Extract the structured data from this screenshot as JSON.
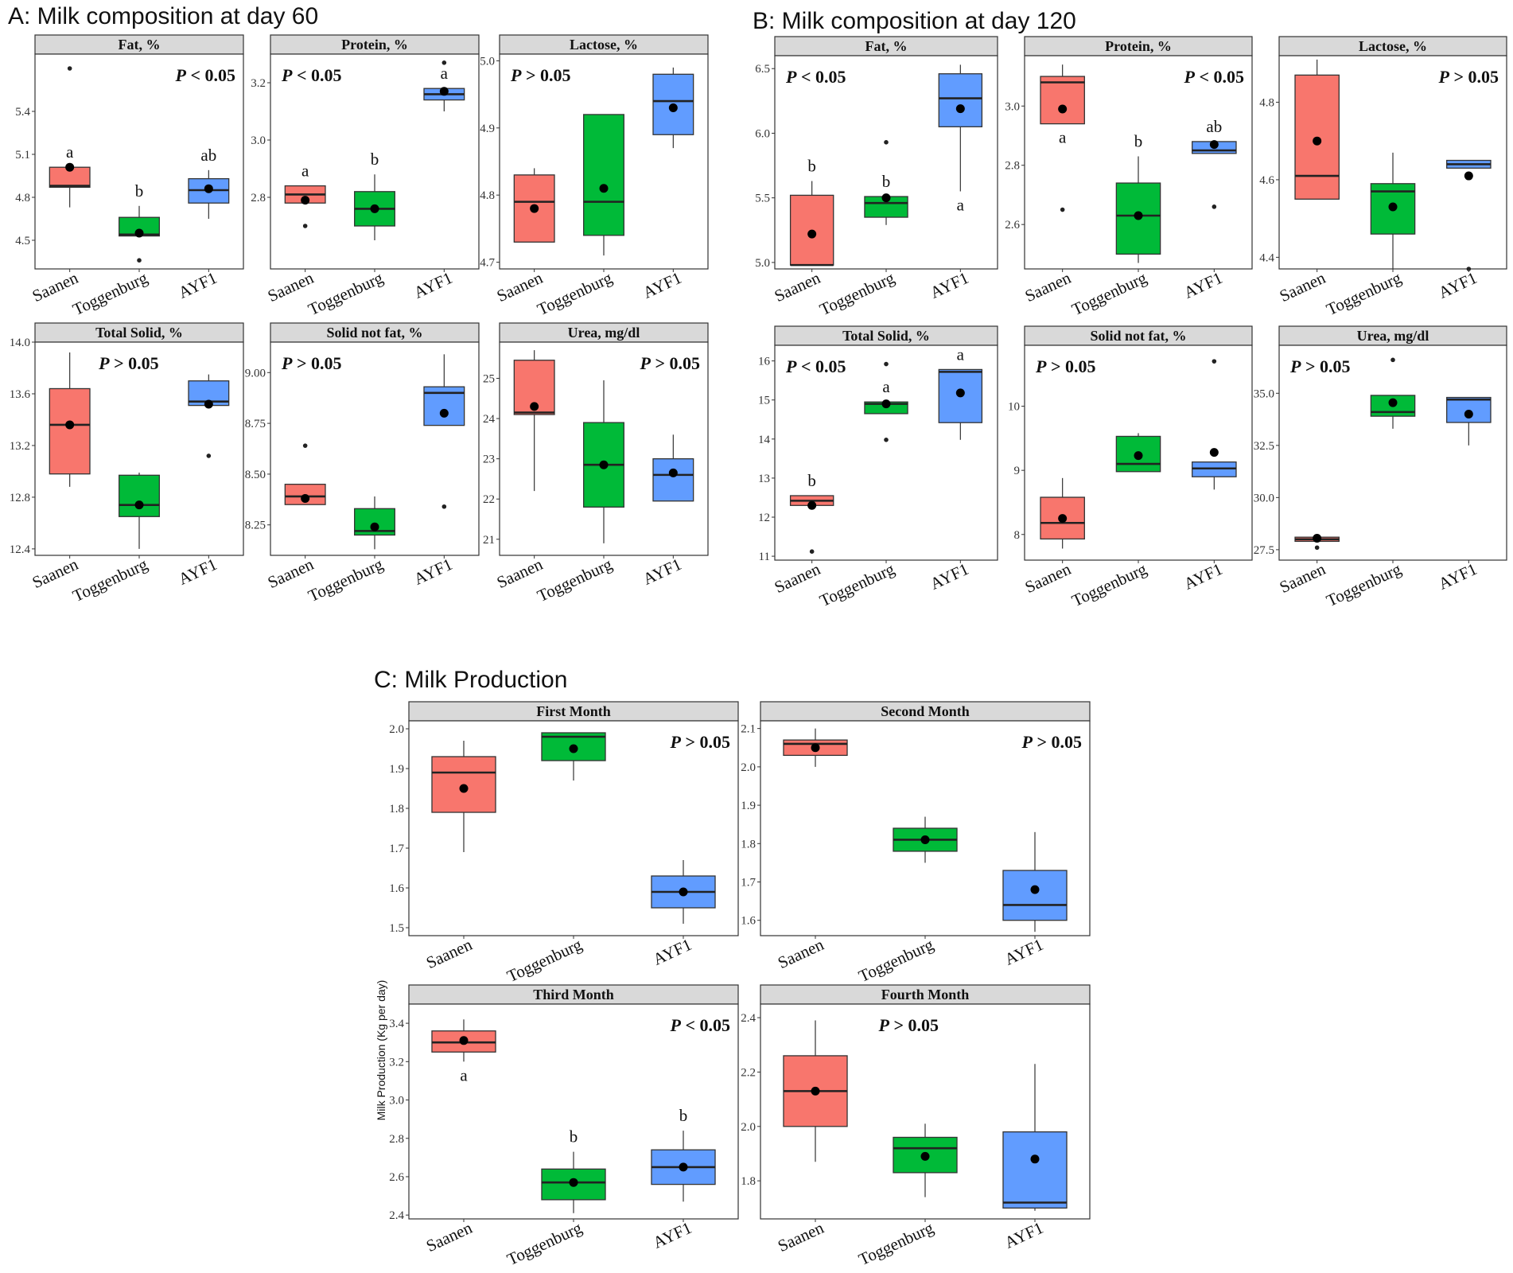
{
  "section_titles": {
    "A": "A: Milk composition at day 60",
    "B": "B: Milk composition at day 120",
    "C": "C: Milk Production"
  },
  "shared_ylabel": "Milk Production (Kg per day)",
  "categories": [
    "Saanen",
    "Toggenburg",
    "AYF1"
  ],
  "colors": {
    "Saanen": "#f8766d",
    "Toggenburg": "#00ba38",
    "AYF1": "#619cff"
  },
  "chart_data": [
    {
      "id": "A_fat",
      "section": "A",
      "type": "box",
      "title": "Fat, %",
      "ylim": [
        4.3,
        5.8
      ],
      "yticks": [
        4.5,
        4.8,
        5.1,
        5.4
      ],
      "tick_decimals": 1,
      "pvalue": "P < 0.05",
      "p_place": "top-right",
      "boxes": [
        {
          "category": "Saanen",
          "q1": 4.87,
          "median": 4.88,
          "q3": 5.01,
          "lower": 4.73,
          "upper": 5.01,
          "mean": 5.01,
          "outliers": [
            5.7
          ],
          "letter": "a"
        },
        {
          "category": "Toggenburg",
          "q1": 4.53,
          "median": 4.54,
          "q3": 4.66,
          "lower": 4.53,
          "upper": 4.74,
          "mean": 4.55,
          "outliers": [
            4.36
          ],
          "letter": "b"
        },
        {
          "category": "AYF1",
          "q1": 4.76,
          "median": 4.85,
          "q3": 4.93,
          "lower": 4.65,
          "upper": 4.99,
          "mean": 4.86,
          "outliers": [],
          "letter": "ab"
        }
      ]
    },
    {
      "id": "A_protein",
      "section": "A",
      "type": "box",
      "title": "Protein, %",
      "ylim": [
        2.55,
        3.3
      ],
      "yticks": [
        2.8,
        3.0,
        3.2
      ],
      "tick_decimals": 1,
      "pvalue": "P < 0.05",
      "p_place": "top-left",
      "boxes": [
        {
          "category": "Saanen",
          "q1": 2.78,
          "median": 2.81,
          "q3": 2.84,
          "lower": 2.78,
          "upper": 2.84,
          "mean": 2.79,
          "outliers": [
            2.7
          ],
          "letter": "a"
        },
        {
          "category": "Toggenburg",
          "q1": 2.7,
          "median": 2.76,
          "q3": 2.82,
          "lower": 2.65,
          "upper": 2.88,
          "mean": 2.76,
          "outliers": [],
          "letter": "b"
        },
        {
          "category": "AYF1",
          "q1": 3.14,
          "median": 3.16,
          "q3": 3.18,
          "lower": 3.1,
          "upper": 3.18,
          "mean": 3.17,
          "outliers": [
            3.27
          ],
          "letter": "a"
        }
      ]
    },
    {
      "id": "A_lactose",
      "section": "A",
      "type": "box",
      "title": "Lactose, %",
      "ylim": [
        4.69,
        5.01
      ],
      "yticks": [
        4.7,
        4.8,
        4.9,
        5.0
      ],
      "tick_decimals": 1,
      "pvalue": "P > 0.05",
      "p_place": "top-left",
      "boxes": [
        {
          "category": "Saanen",
          "q1": 4.73,
          "median": 4.79,
          "q3": 4.83,
          "lower": 4.73,
          "upper": 4.84,
          "mean": 4.78,
          "outliers": [],
          "letter": ""
        },
        {
          "category": "Toggenburg",
          "q1": 4.74,
          "median": 4.79,
          "q3": 4.92,
          "lower": 4.71,
          "upper": 4.92,
          "mean": 4.81,
          "outliers": [],
          "letter": ""
        },
        {
          "category": "AYF1",
          "q1": 4.89,
          "median": 4.94,
          "q3": 4.98,
          "lower": 4.87,
          "upper": 4.99,
          "mean": 4.93,
          "outliers": [],
          "letter": ""
        }
      ]
    },
    {
      "id": "A_total_solid",
      "section": "A",
      "type": "box",
      "title": "Total Solid, %",
      "ylim": [
        12.35,
        14.0
      ],
      "yticks": [
        12.4,
        12.8,
        13.2,
        13.6,
        14.0
      ],
      "tick_decimals": 1,
      "pvalue": "P > 0.05",
      "p_place": "top-center",
      "boxes": [
        {
          "category": "Saanen",
          "q1": 12.98,
          "median": 13.36,
          "q3": 13.64,
          "lower": 12.88,
          "upper": 13.92,
          "mean": 13.36,
          "outliers": [],
          "letter": ""
        },
        {
          "category": "Toggenburg",
          "q1": 12.65,
          "median": 12.74,
          "q3": 12.97,
          "lower": 12.4,
          "upper": 12.99,
          "mean": 12.74,
          "outliers": [],
          "letter": ""
        },
        {
          "category": "AYF1",
          "q1": 13.51,
          "median": 13.54,
          "q3": 13.7,
          "lower": 13.51,
          "upper": 13.75,
          "mean": 13.52,
          "outliers": [
            13.12
          ],
          "letter": ""
        }
      ]
    },
    {
      "id": "A_snf",
      "section": "A",
      "type": "box",
      "title": "Solid not fat, %",
      "ylim": [
        8.1,
        9.15
      ],
      "yticks": [
        8.25,
        8.5,
        8.75,
        9.0
      ],
      "tick_decimals": 2,
      "pvalue": "P > 0.05",
      "p_place": "top-left",
      "boxes": [
        {
          "category": "Saanen",
          "q1": 8.35,
          "median": 8.39,
          "q3": 8.45,
          "lower": 8.35,
          "upper": 8.45,
          "mean": 8.38,
          "outliers": [
            8.64
          ],
          "letter": ""
        },
        {
          "category": "Toggenburg",
          "q1": 8.2,
          "median": 8.22,
          "q3": 8.33,
          "lower": 8.13,
          "upper": 8.39,
          "mean": 8.24,
          "outliers": [],
          "letter": ""
        },
        {
          "category": "AYF1",
          "q1": 8.74,
          "median": 8.9,
          "q3": 8.93,
          "lower": 8.74,
          "upper": 9.09,
          "mean": 8.8,
          "outliers": [
            8.34
          ],
          "letter": ""
        }
      ]
    },
    {
      "id": "A_urea",
      "section": "A",
      "type": "box",
      "title": "Urea, mg/dl",
      "ylim": [
        20.6,
        25.9
      ],
      "yticks": [
        21,
        22,
        23,
        24,
        25
      ],
      "tick_decimals": 0,
      "pvalue": "P > 0.05",
      "p_place": "top-right",
      "boxes": [
        {
          "category": "Saanen",
          "q1": 24.1,
          "median": 24.15,
          "q3": 25.45,
          "lower": 22.2,
          "upper": 25.7,
          "mean": 24.3,
          "outliers": [],
          "letter": ""
        },
        {
          "category": "Toggenburg",
          "q1": 21.8,
          "median": 22.85,
          "q3": 23.9,
          "lower": 20.9,
          "upper": 24.95,
          "mean": 22.85,
          "outliers": [],
          "letter": ""
        },
        {
          "category": "AYF1",
          "q1": 21.95,
          "median": 22.6,
          "q3": 23.0,
          "lower": 21.95,
          "upper": 23.6,
          "mean": 22.65,
          "outliers": [],
          "letter": ""
        }
      ]
    },
    {
      "id": "B_fat",
      "section": "B",
      "type": "box",
      "title": "Fat, %",
      "ylim": [
        4.95,
        6.6
      ],
      "yticks": [
        5.0,
        5.5,
        6.0,
        6.5
      ],
      "tick_decimals": 1,
      "pvalue": "P < 0.05",
      "p_place": "top-left",
      "boxes": [
        {
          "category": "Saanen",
          "q1": 4.98,
          "median": 4.98,
          "q3": 5.52,
          "lower": 4.98,
          "upper": 5.63,
          "mean": 5.22,
          "outliers": [],
          "letter": "b"
        },
        {
          "category": "Toggenburg",
          "q1": 5.35,
          "median": 5.46,
          "q3": 5.51,
          "lower": 5.29,
          "upper": 5.51,
          "mean": 5.5,
          "outliers": [
            5.93
          ],
          "letter": "b"
        },
        {
          "category": "AYF1",
          "q1": 6.05,
          "median": 6.27,
          "q3": 6.46,
          "lower": 5.55,
          "upper": 6.53,
          "mean": 6.19,
          "outliers": [],
          "letter": "a"
        }
      ]
    },
    {
      "id": "B_protein",
      "section": "B",
      "type": "box",
      "title": "Protein, %",
      "ylim": [
        2.45,
        3.17
      ],
      "yticks": [
        2.6,
        2.8,
        3.0
      ],
      "tick_decimals": 1,
      "pvalue": "P < 0.05",
      "p_place": "top-right",
      "boxes": [
        {
          "category": "Saanen",
          "q1": 2.94,
          "median": 3.08,
          "q3": 3.1,
          "lower": 2.94,
          "upper": 3.14,
          "mean": 2.99,
          "outliers": [
            2.65
          ],
          "letter": "a"
        },
        {
          "category": "Toggenburg",
          "q1": 2.5,
          "median": 2.63,
          "q3": 2.74,
          "lower": 2.47,
          "upper": 2.83,
          "mean": 2.63,
          "outliers": [],
          "letter": "b"
        },
        {
          "category": "AYF1",
          "q1": 2.84,
          "median": 2.85,
          "q3": 2.88,
          "lower": 2.84,
          "upper": 2.88,
          "mean": 2.87,
          "outliers": [
            2.66
          ],
          "letter": "ab"
        }
      ]
    },
    {
      "id": "B_lactose",
      "section": "B",
      "type": "box",
      "title": "Lactose, %",
      "ylim": [
        4.37,
        4.92
      ],
      "yticks": [
        4.4,
        4.6,
        4.8
      ],
      "tick_decimals": 1,
      "pvalue": "P > 0.05",
      "p_place": "top-right",
      "boxes": [
        {
          "category": "Saanen",
          "q1": 4.55,
          "median": 4.61,
          "q3": 4.87,
          "lower": 4.55,
          "upper": 4.91,
          "mean": 4.7,
          "outliers": [],
          "letter": ""
        },
        {
          "category": "Toggenburg",
          "q1": 4.46,
          "median": 4.57,
          "q3": 4.59,
          "lower": 4.37,
          "upper": 4.67,
          "mean": 4.53,
          "outliers": [],
          "letter": ""
        },
        {
          "category": "AYF1",
          "q1": 4.63,
          "median": 4.64,
          "q3": 4.65,
          "lower": 4.63,
          "upper": 4.65,
          "mean": 4.61,
          "outliers": [
            4.37
          ],
          "letter": ""
        }
      ]
    },
    {
      "id": "B_total_solid",
      "section": "B",
      "type": "box",
      "title": "Total Solid, %",
      "ylim": [
        10.9,
        16.4
      ],
      "yticks": [
        11,
        12,
        13,
        14,
        15,
        16
      ],
      "tick_decimals": 0,
      "pvalue": "P < 0.05",
      "p_place": "top-left",
      "boxes": [
        {
          "category": "Saanen",
          "q1": 12.3,
          "median": 12.42,
          "q3": 12.55,
          "lower": 12.3,
          "upper": 12.55,
          "mean": 12.3,
          "outliers": [
            11.12
          ],
          "letter": "b"
        },
        {
          "category": "Toggenburg",
          "q1": 14.65,
          "median": 14.9,
          "q3": 14.95,
          "lower": 14.65,
          "upper": 14.95,
          "mean": 14.9,
          "outliers": [
            15.92,
            13.98
          ],
          "letter": "a"
        },
        {
          "category": "AYF1",
          "q1": 14.42,
          "median": 15.72,
          "q3": 15.78,
          "lower": 13.98,
          "upper": 15.78,
          "mean": 15.18,
          "outliers": [],
          "letter": "a"
        }
      ]
    },
    {
      "id": "B_snf",
      "section": "B",
      "type": "box",
      "title": "Solid not fat, %",
      "ylim": [
        7.6,
        10.95
      ],
      "yticks": [
        8,
        9,
        10
      ],
      "tick_decimals": 0,
      "pvalue": "P > 0.05",
      "p_place": "top-left",
      "boxes": [
        {
          "category": "Saanen",
          "q1": 7.93,
          "median": 8.18,
          "q3": 8.58,
          "lower": 7.78,
          "upper": 8.88,
          "mean": 8.25,
          "outliers": [],
          "letter": ""
        },
        {
          "category": "Toggenburg",
          "q1": 8.98,
          "median": 9.1,
          "q3": 9.53,
          "lower": 8.98,
          "upper": 9.58,
          "mean": 9.23,
          "outliers": [],
          "letter": ""
        },
        {
          "category": "AYF1",
          "q1": 8.9,
          "median": 9.03,
          "q3": 9.13,
          "lower": 8.7,
          "upper": 9.13,
          "mean": 9.28,
          "outliers": [
            10.7
          ],
          "letter": ""
        }
      ]
    },
    {
      "id": "B_urea",
      "section": "B",
      "type": "box",
      "title": "Urea, mg/dl",
      "ylim": [
        27.0,
        37.3
      ],
      "yticks": [
        27.5,
        30.0,
        32.5,
        35.0
      ],
      "tick_decimals": 1,
      "pvalue": "P > 0.05",
      "p_place": "top-left",
      "boxes": [
        {
          "category": "Saanen",
          "q1": 27.9,
          "median": 28.0,
          "q3": 28.1,
          "lower": 27.9,
          "upper": 28.1,
          "mean": 28.05,
          "outliers": [
            27.6
          ],
          "letter": ""
        },
        {
          "category": "Toggenburg",
          "q1": 33.9,
          "median": 34.1,
          "q3": 34.9,
          "lower": 33.3,
          "upper": 34.9,
          "mean": 34.55,
          "outliers": [
            36.6
          ],
          "letter": ""
        },
        {
          "category": "AYF1",
          "q1": 33.6,
          "median": 34.7,
          "q3": 34.8,
          "lower": 32.5,
          "upper": 34.8,
          "mean": 34.0,
          "outliers": [],
          "letter": ""
        }
      ]
    },
    {
      "id": "C_first",
      "section": "C",
      "type": "box",
      "title": "First Month",
      "ylim": [
        1.48,
        2.02
      ],
      "yticks": [
        1.5,
        1.6,
        1.7,
        1.8,
        1.9,
        2.0
      ],
      "tick_decimals": 1,
      "pvalue": "P > 0.05",
      "p_place": "top-right",
      "boxes": [
        {
          "category": "Saanen",
          "q1": 1.79,
          "median": 1.89,
          "q3": 1.93,
          "lower": 1.69,
          "upper": 1.97,
          "mean": 1.85,
          "outliers": [],
          "letter": ""
        },
        {
          "category": "Toggenburg",
          "q1": 1.92,
          "median": 1.98,
          "q3": 1.99,
          "lower": 1.87,
          "upper": 1.99,
          "mean": 1.95,
          "outliers": [],
          "letter": ""
        },
        {
          "category": "AYF1",
          "q1": 1.55,
          "median": 1.59,
          "q3": 1.63,
          "lower": 1.51,
          "upper": 1.67,
          "mean": 1.59,
          "outliers": [],
          "letter": ""
        }
      ]
    },
    {
      "id": "C_second",
      "section": "C",
      "type": "box",
      "title": "Second Month",
      "ylim": [
        1.56,
        2.12
      ],
      "yticks": [
        1.6,
        1.7,
        1.8,
        1.9,
        2.0,
        2.1
      ],
      "tick_decimals": 1,
      "pvalue": "P > 0.05",
      "p_place": "top-right",
      "boxes": [
        {
          "category": "Saanen",
          "q1": 2.03,
          "median": 2.06,
          "q3": 2.07,
          "lower": 2.0,
          "upper": 2.1,
          "mean": 2.05,
          "outliers": [],
          "letter": ""
        },
        {
          "category": "Toggenburg",
          "q1": 1.78,
          "median": 1.81,
          "q3": 1.84,
          "lower": 1.75,
          "upper": 1.87,
          "mean": 1.81,
          "outliers": [],
          "letter": ""
        },
        {
          "category": "AYF1",
          "q1": 1.6,
          "median": 1.64,
          "q3": 1.73,
          "lower": 1.57,
          "upper": 1.83,
          "mean": 1.68,
          "outliers": [],
          "letter": ""
        }
      ]
    },
    {
      "id": "C_third",
      "section": "C",
      "type": "box",
      "title": "Third Month",
      "ylim": [
        2.38,
        3.5
      ],
      "yticks": [
        2.4,
        2.6,
        2.8,
        3.0,
        3.2,
        3.4
      ],
      "tick_decimals": 1,
      "pvalue": "P < 0.05",
      "p_place": "top-right",
      "boxes": [
        {
          "category": "Saanen",
          "q1": 3.25,
          "median": 3.3,
          "q3": 3.36,
          "lower": 3.2,
          "upper": 3.42,
          "mean": 3.31,
          "outliers": [],
          "letter": "a"
        },
        {
          "category": "Toggenburg",
          "q1": 2.48,
          "median": 2.57,
          "q3": 2.64,
          "lower": 2.41,
          "upper": 2.73,
          "mean": 2.57,
          "outliers": [],
          "letter": "b"
        },
        {
          "category": "AYF1",
          "q1": 2.56,
          "median": 2.65,
          "q3": 2.74,
          "lower": 2.47,
          "upper": 2.84,
          "mean": 2.65,
          "outliers": [],
          "letter": "b"
        }
      ]
    },
    {
      "id": "C_fourth",
      "section": "C",
      "type": "box",
      "title": "Fourth Month",
      "ylim": [
        1.66,
        2.45
      ],
      "yticks": [
        1.8,
        2.0,
        2.2,
        2.4
      ],
      "tick_decimals": 1,
      "pvalue": "P > 0.05",
      "p_place": "top-center",
      "boxes": [
        {
          "category": "Saanen",
          "q1": 2.0,
          "median": 2.13,
          "q3": 2.26,
          "lower": 1.87,
          "upper": 2.39,
          "mean": 2.13,
          "outliers": [],
          "letter": ""
        },
        {
          "category": "Toggenburg",
          "q1": 1.83,
          "median": 1.92,
          "q3": 1.96,
          "lower": 1.74,
          "upper": 2.01,
          "mean": 1.89,
          "outliers": [],
          "letter": ""
        },
        {
          "category": "AYF1",
          "q1": 1.7,
          "median": 1.72,
          "q3": 1.98,
          "lower": 1.69,
          "upper": 2.23,
          "mean": 1.88,
          "outliers": [],
          "letter": ""
        }
      ]
    }
  ]
}
